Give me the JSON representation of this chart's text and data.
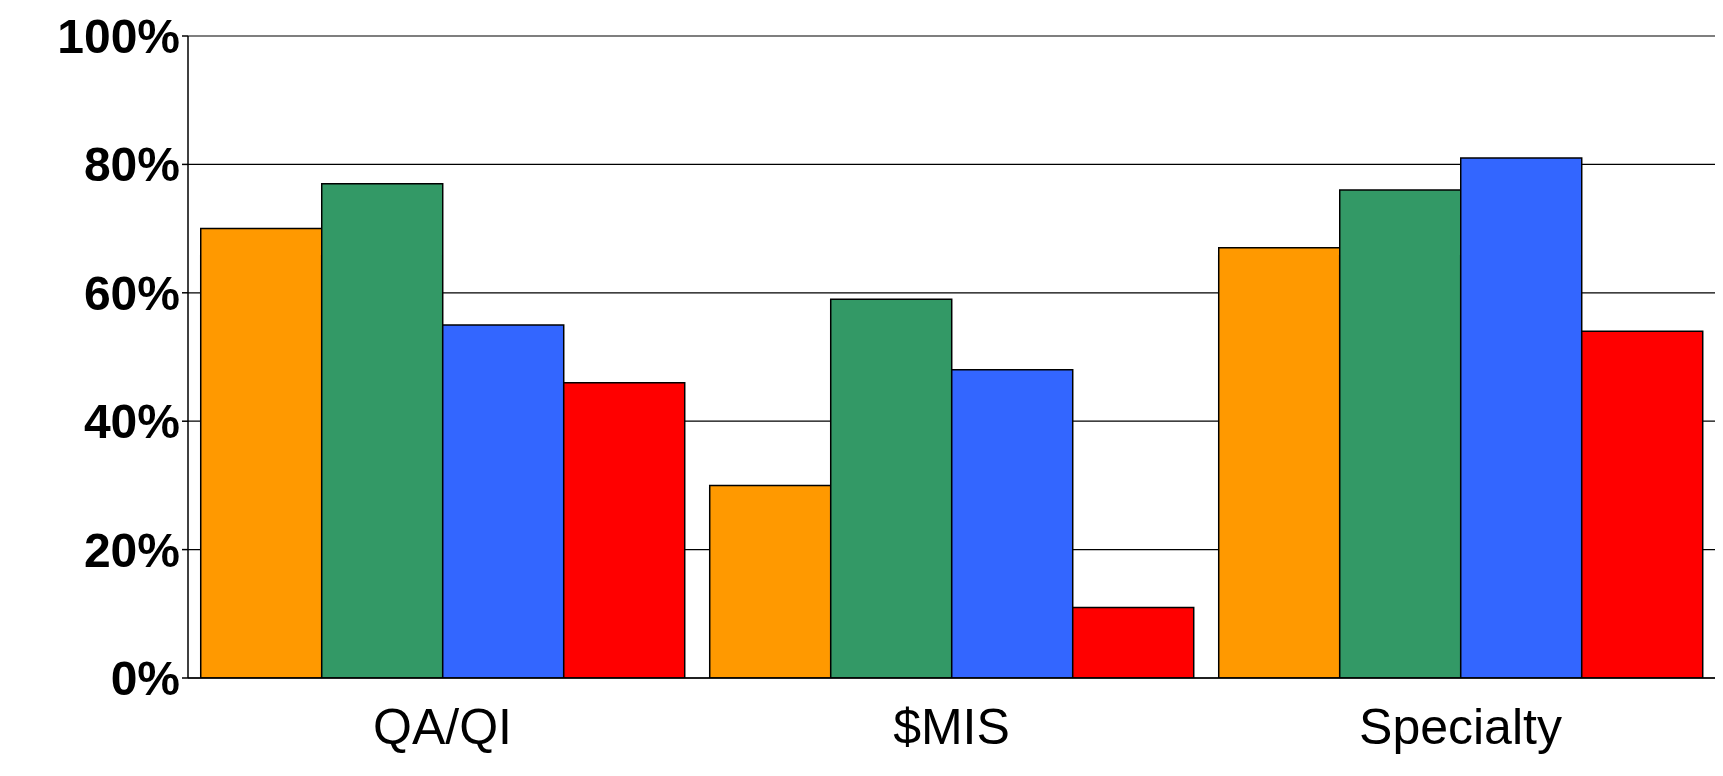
{
  "chart_data": {
    "type": "bar",
    "categories": [
      "QA/QI",
      "$MIS",
      "Specialty"
    ],
    "series": [
      {
        "color": "#ff9900",
        "values": [
          70,
          30,
          67
        ]
      },
      {
        "color": "#339966",
        "values": [
          77,
          59,
          76
        ]
      },
      {
        "color": "#3366ff",
        "values": [
          55,
          48,
          81
        ]
      },
      {
        "color": "#ff0000",
        "values": [
          46,
          11,
          54
        ]
      }
    ],
    "ylim": [
      0,
      100
    ],
    "yticks": [
      {
        "value": 0,
        "label": "0%"
      },
      {
        "value": 20,
        "label": "20%"
      },
      {
        "value": 40,
        "label": "40%"
      },
      {
        "value": 60,
        "label": "60%"
      },
      {
        "value": 80,
        "label": "80%"
      },
      {
        "value": 100,
        "label": "100%"
      }
    ],
    "grid": "y",
    "legend": false
  }
}
